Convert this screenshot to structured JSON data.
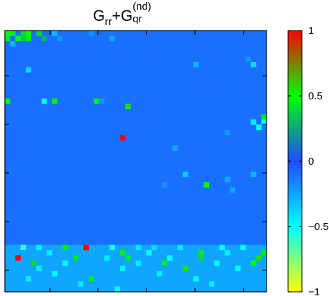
{
  "chart_data": {
    "type": "heatmap",
    "title": {
      "base1": "G",
      "sub1": "rr",
      "plus": "+",
      "base2": "G",
      "sub2": "qr",
      "sup2": "(nd)"
    },
    "rows": 50,
    "cols": 50,
    "background_value": -0.1,
    "colorbar": {
      "min": -1,
      "max": 1,
      "ticks": [
        {
          "value": 1,
          "label": "1"
        },
        {
          "value": 0.5,
          "label": "0.5"
        },
        {
          "value": 0,
          "label": "0"
        },
        {
          "value": -0.5,
          "label": "−0.5"
        },
        {
          "value": -1,
          "label": "−1"
        }
      ],
      "colors": [
        "#ffff00",
        "#00ffff",
        "#1f4cff",
        "#00ff00",
        "#ff0000"
      ]
    },
    "bands": [
      {
        "row_start": 41,
        "row_end": 49,
        "value": -0.25
      }
    ],
    "cells": [
      {
        "r": 0,
        "c": 0,
        "v": 0.5
      },
      {
        "r": 0,
        "c": 1,
        "v": 0.45
      },
      {
        "r": 0,
        "c": 3,
        "v": 0.4
      },
      {
        "r": 0,
        "c": 4,
        "v": 0.5
      },
      {
        "r": 1,
        "c": 0,
        "v": 0.45
      },
      {
        "r": 1,
        "c": 2,
        "v": 0.5
      },
      {
        "r": 1,
        "c": 3,
        "v": 0.35
      },
      {
        "r": 1,
        "c": 4,
        "v": 0.45
      },
      {
        "r": 0,
        "c": 6,
        "v": 0.4
      },
      {
        "r": 1,
        "c": 7,
        "v": 0.3
      },
      {
        "r": 0,
        "c": 9,
        "v": -0.3
      },
      {
        "r": 1,
        "c": 10,
        "v": -0.2
      },
      {
        "r": 2,
        "c": 1,
        "v": -0.3
      },
      {
        "r": 0,
        "c": 16,
        "v": -0.2
      },
      {
        "r": 1,
        "c": 20,
        "v": -0.25
      },
      {
        "r": 7,
        "c": 4,
        "v": -0.4
      },
      {
        "r": 6,
        "c": 36,
        "v": -0.3
      },
      {
        "r": 6,
        "c": 47,
        "v": -0.4
      },
      {
        "r": 5,
        "c": 46,
        "v": -0.2
      },
      {
        "r": 13,
        "c": 0,
        "v": 0.5
      },
      {
        "r": 13,
        "c": 7,
        "v": -0.5
      },
      {
        "r": 13,
        "c": 9,
        "v": 0.45
      },
      {
        "r": 13,
        "c": 17,
        "v": 0.45
      },
      {
        "r": 14,
        "c": 23,
        "v": 0.55
      },
      {
        "r": 13,
        "c": 18,
        "v": -0.2
      },
      {
        "r": 20,
        "c": 22,
        "v": 1.0
      },
      {
        "r": 22,
        "c": 32,
        "v": -0.25
      },
      {
        "r": 19,
        "c": 42,
        "v": -0.2
      },
      {
        "r": 18,
        "c": 48,
        "v": -0.5
      },
      {
        "r": 17,
        "c": 47,
        "v": -0.45
      },
      {
        "r": 19,
        "c": 50,
        "v": -0.4
      },
      {
        "r": 16,
        "c": 49,
        "v": 0.4
      },
      {
        "r": 17,
        "c": 49,
        "v": -0.5
      },
      {
        "r": 19,
        "c": 51,
        "v": 0.5
      },
      {
        "r": 27,
        "c": 34,
        "v": -0.35
      },
      {
        "r": 27,
        "c": 47,
        "v": -0.3
      },
      {
        "r": 28,
        "c": 42,
        "v": -0.25
      },
      {
        "r": 29,
        "c": 38,
        "v": 0.5
      },
      {
        "r": 30,
        "c": 43,
        "v": -0.25
      },
      {
        "r": 29,
        "c": 30,
        "v": -0.2
      },
      {
        "r": 43,
        "c": 2,
        "v": 1.0
      },
      {
        "r": 41,
        "c": 15,
        "v": 1.0
      },
      {
        "r": 41,
        "c": 11,
        "v": 0.45
      },
      {
        "r": 43,
        "c": 13,
        "v": 0.45
      },
      {
        "r": 44,
        "c": 5,
        "v": 0.4
      },
      {
        "r": 42,
        "c": 22,
        "v": 0.45
      },
      {
        "r": 43,
        "c": 23,
        "v": 0.45
      },
      {
        "r": 44,
        "c": 30,
        "v": 0.45
      },
      {
        "r": 45,
        "c": 34,
        "v": 0.55
      },
      {
        "r": 42,
        "c": 37,
        "v": 0.45
      },
      {
        "r": 43,
        "c": 37,
        "v": 0.4
      },
      {
        "r": 44,
        "c": 47,
        "v": 0.5
      },
      {
        "r": 43,
        "c": 48,
        "v": 0.55
      },
      {
        "r": 42,
        "c": 49,
        "v": 0.45
      },
      {
        "r": 47,
        "c": 16,
        "v": 0.45
      },
      {
        "r": 47,
        "c": 51,
        "v": 0.55
      },
      {
        "r": 46,
        "c": 51,
        "v": 0.35
      },
      {
        "r": 41,
        "c": 3,
        "v": -0.6
      },
      {
        "r": 41,
        "c": 6,
        "v": -0.45
      },
      {
        "r": 41,
        "c": 20,
        "v": -0.55
      },
      {
        "r": 41,
        "c": 25,
        "v": -0.45
      },
      {
        "r": 41,
        "c": 28,
        "v": -0.4
      },
      {
        "r": 41,
        "c": 33,
        "v": -0.45
      },
      {
        "r": 41,
        "c": 41,
        "v": -0.5
      },
      {
        "r": 41,
        "c": 45,
        "v": -0.5
      },
      {
        "r": 42,
        "c": 8,
        "v": -0.45
      },
      {
        "r": 42,
        "c": 27,
        "v": -0.5
      },
      {
        "r": 42,
        "c": 42,
        "v": -0.45
      },
      {
        "r": 43,
        "c": 19,
        "v": -0.45
      },
      {
        "r": 43,
        "c": 31,
        "v": -0.5
      },
      {
        "r": 44,
        "c": 11,
        "v": -0.5
      },
      {
        "r": 44,
        "c": 25,
        "v": -0.45
      },
      {
        "r": 44,
        "c": 40,
        "v": -0.5
      },
      {
        "r": 45,
        "c": 6,
        "v": -0.45
      },
      {
        "r": 45,
        "c": 22,
        "v": -0.45
      },
      {
        "r": 45,
        "c": 44,
        "v": -0.5
      },
      {
        "r": 46,
        "c": 9,
        "v": -0.5
      },
      {
        "r": 46,
        "c": 29,
        "v": -0.45
      },
      {
        "r": 47,
        "c": 4,
        "v": -0.45
      },
      {
        "r": 47,
        "c": 36,
        "v": -0.5
      },
      {
        "r": 48,
        "c": 14,
        "v": -0.45
      },
      {
        "r": 48,
        "c": 39,
        "v": -0.45
      },
      {
        "r": 49,
        "c": 21,
        "v": -0.5
      }
    ]
  }
}
